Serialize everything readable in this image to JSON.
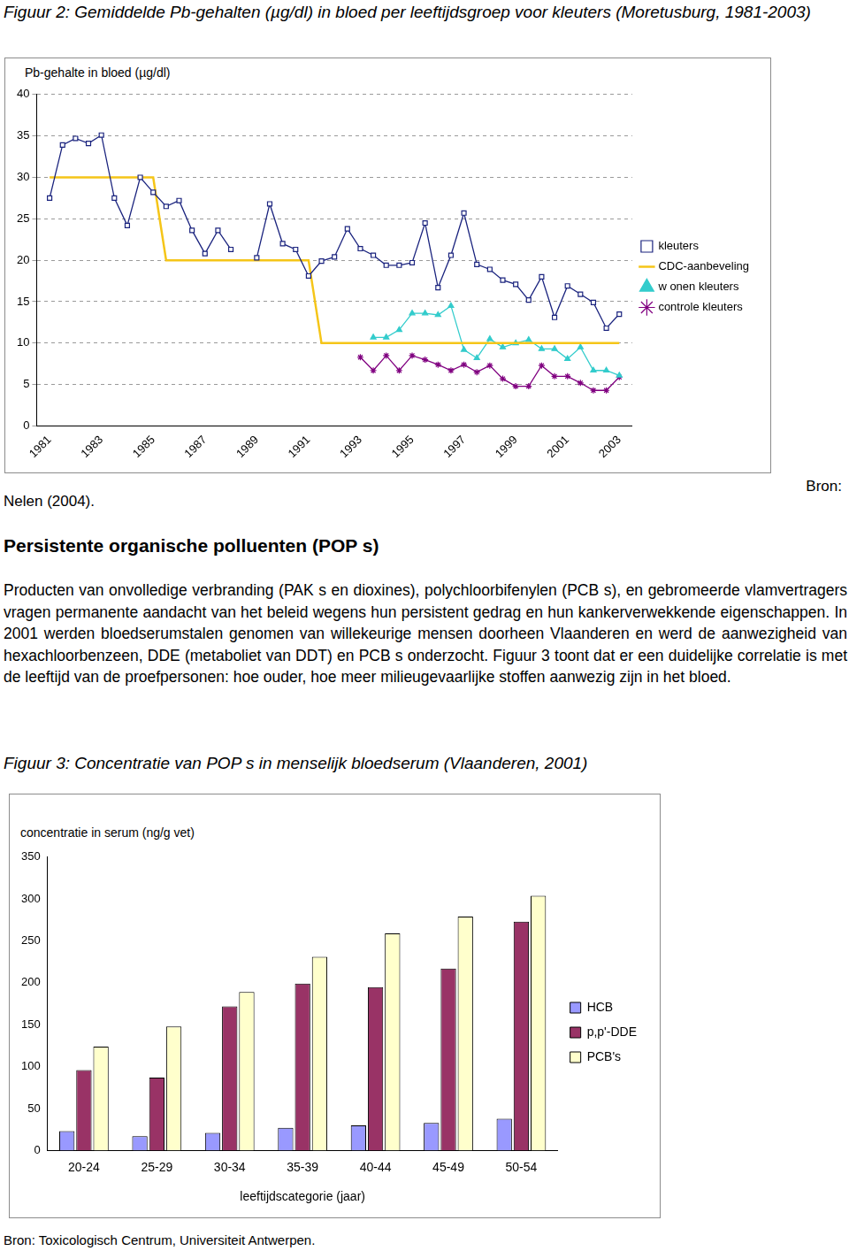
{
  "document": {
    "figure2_caption": "Figuur 2: Gemiddelde Pb-gehalten (µg/dl) in bloed per leeftijdsgroep voor kleuters (Moretusburg, 1981-2003)",
    "figure2_source": "Nelen (2004).",
    "figure2_source_label": "Bron:",
    "heading": "Persistente organische polluenten (POP s)",
    "paragraph": "Producten van onvolledige verbranding (PAK s en dioxines), polychloorbifenylen (PCB s), en gebromeerde vlamvertragers vragen permanente aandacht van het beleid wegens hun persistent gedrag en hun kankerverwekkende eigenschappen. In 2001 werden bloedserumstalen genomen van willekeurige mensen doorheen Vlaanderen en werd de aanwezigheid van hexachloorbenzeen, DDE (metaboliet van DDT) en PCB s onderzocht. Figuur 3 toont dat er een duidelijke correlatie is met de leeftijd van de proefpersonen: hoe ouder, hoe meer milieugevaarlijke stoffen aanwezig zijn in het bloed.",
    "figure3_caption": "Figuur 3: Concentratie van POP s in menselijk bloedserum (Vlaanderen, 2001)",
    "figure3_source": "Bron: Toxicologisch Centrum, Universiteit Antwerpen."
  },
  "chart_data": [
    {
      "type": "line",
      "y_label": "Pb-gehalte in bloed (µg/dl)",
      "x": [
        1981,
        1981.5,
        1982,
        1982.5,
        1983,
        1983.5,
        1984,
        1984.5,
        1985,
        1985.5,
        1986,
        1986.5,
        1987,
        1987.5,
        1988,
        1988.5,
        1989,
        1989.5,
        1990,
        1990.5,
        1991,
        1991.5,
        1992,
        1992.5,
        1993,
        1993.5,
        1994,
        1994.5,
        1995,
        1995.5,
        1996,
        1996.5,
        1997,
        1997.5,
        1998,
        1998.5,
        1999,
        1999.5,
        2000,
        2000.5,
        2001,
        2001.5,
        2002,
        2002.5,
        2003
      ],
      "xlim": [
        1980.5,
        2003.5
      ],
      "xticks": [
        1981,
        1983,
        1985,
        1987,
        1989,
        1991,
        1993,
        1995,
        1997,
        1999,
        2001,
        2003
      ],
      "ylim": [
        0,
        40
      ],
      "yticks": [
        0,
        5,
        10,
        15,
        20,
        25,
        30,
        35,
        40
      ],
      "grid": true,
      "legend": "right",
      "series": [
        {
          "name": "kleuters",
          "color": "#1a237e",
          "marker": "square",
          "values": [
            27.5,
            33.9,
            34.7,
            34.1,
            35.1,
            27.5,
            24.2,
            30.0,
            28.2,
            26.5,
            27.2,
            23.6,
            20.8,
            23.6,
            21.3,
            null,
            20.3,
            26.8,
            22.0,
            21.3,
            18.1,
            19.9,
            20.4,
            23.8,
            21.4,
            20.6,
            19.4,
            19.4,
            19.7,
            24.5,
            16.7,
            20.6,
            25.7,
            19.5,
            18.9,
            17.6,
            17.1,
            15.2,
            18.0,
            13.1,
            16.9,
            15.9,
            14.9,
            11.8,
            13.5
          ]
        },
        {
          "name": "CDC-aanbeveling",
          "color": "#f5c518",
          "marker": "none",
          "values": [
            30,
            30,
            30,
            30,
            30,
            30,
            30,
            30,
            30,
            20,
            20,
            20,
            20,
            20,
            20,
            20,
            20,
            20,
            20,
            20,
            20,
            10,
            10,
            10,
            10,
            10,
            10,
            10,
            10,
            10,
            10,
            10,
            10,
            10,
            10,
            10,
            10,
            10,
            10,
            10,
            10,
            10,
            10,
            10,
            10
          ]
        },
        {
          "name": "w onen kleuters",
          "color": "#33cccc",
          "marker": "triangle",
          "values": [
            null,
            null,
            null,
            null,
            null,
            null,
            null,
            null,
            null,
            null,
            null,
            null,
            null,
            null,
            null,
            null,
            null,
            null,
            null,
            null,
            null,
            null,
            null,
            null,
            null,
            10.7,
            10.7,
            11.6,
            13.6,
            13.6,
            13.4,
            14.5,
            9.2,
            8.2,
            10.5,
            9.5,
            10.0,
            10.4,
            9.3,
            9.3,
            8.1,
            9.5,
            6.7,
            6.7,
            6.1
          ]
        },
        {
          "name": "controle kleuters",
          "color": "#800080",
          "marker": "star",
          "values": [
            null,
            null,
            null,
            null,
            null,
            null,
            null,
            null,
            null,
            null,
            null,
            null,
            null,
            null,
            null,
            null,
            null,
            null,
            null,
            null,
            null,
            null,
            null,
            null,
            8.3,
            6.7,
            8.5,
            6.7,
            8.5,
            8.0,
            7.4,
            6.7,
            7.4,
            6.5,
            7.3,
            5.7,
            4.8,
            4.8,
            7.3,
            6.0,
            6.0,
            5.2,
            4.3,
            4.3,
            5.9
          ]
        }
      ]
    },
    {
      "type": "bar",
      "y_label": "concentratie in serum (ng/g vet)",
      "x_label": "leeftijdscategorie (jaar)",
      "categories": [
        "20-24",
        "25-29",
        "30-34",
        "35-39",
        "40-44",
        "45-49",
        "50-54"
      ],
      "ylim": [
        0,
        350
      ],
      "yticks": [
        0,
        50,
        100,
        150,
        200,
        250,
        300,
        350
      ],
      "grid": false,
      "legend": "right",
      "series": [
        {
          "name": "HCB",
          "color": "#9999ff",
          "values": [
            23,
            17,
            21,
            27,
            30,
            33,
            38
          ]
        },
        {
          "name": "p,p'-DDE",
          "color": "#993366",
          "values": [
            96,
            87,
            172,
            199,
            195,
            217,
            273
          ]
        },
        {
          "name": "PCB's",
          "color": "#ffffcc",
          "values": [
            124,
            148,
            189,
            231,
            259,
            279,
            304
          ]
        }
      ]
    }
  ]
}
